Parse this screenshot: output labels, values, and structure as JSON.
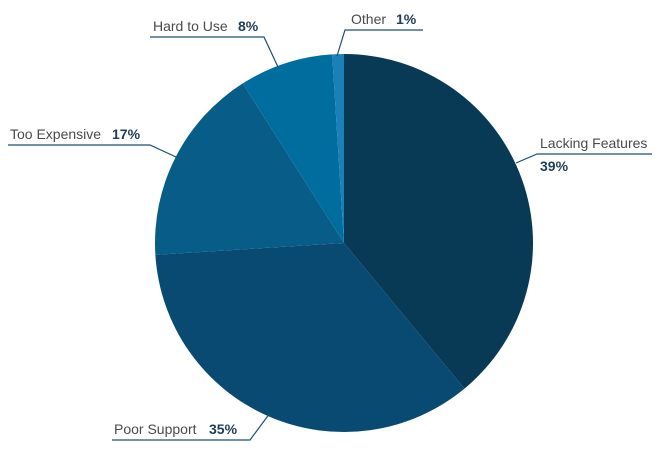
{
  "chart_data": {
    "type": "pie",
    "title": "",
    "slices": [
      {
        "label": "Lacking Features",
        "value": 39,
        "display": "39%",
        "color": "#083a55"
      },
      {
        "label": "Poor Support",
        "value": 35,
        "display": "35%",
        "color": "#084a71"
      },
      {
        "label": "Too Expensive",
        "value": 17,
        "display": "17%",
        "color": "#075d88"
      },
      {
        "label": "Hard to Use",
        "value": 8,
        "display": "8%",
        "color": "#006d9f"
      },
      {
        "label": "Other",
        "value": 1,
        "display": "1%",
        "color": "#1b80b7"
      }
    ],
    "legend": "none",
    "leader_line_color": "#1b4f72"
  }
}
